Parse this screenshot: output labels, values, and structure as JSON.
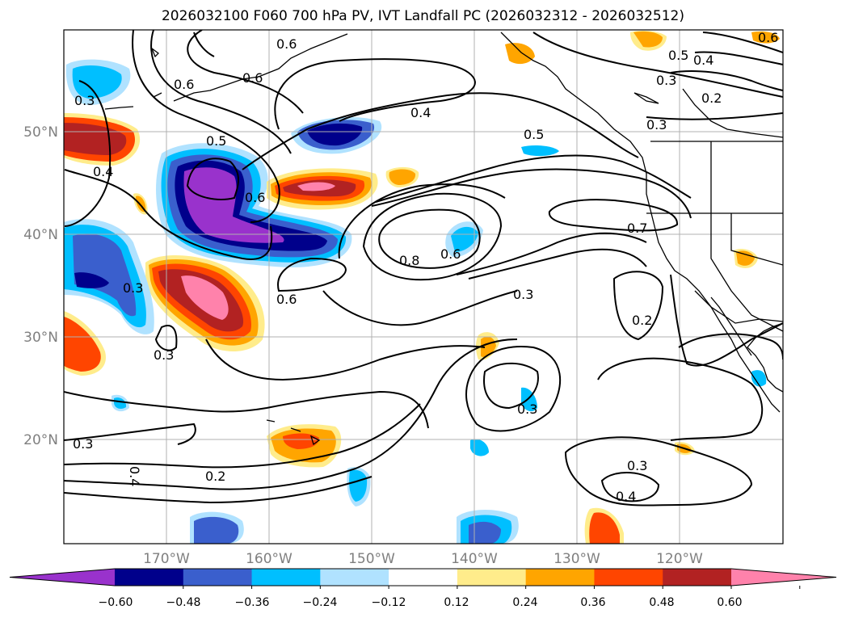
{
  "title": "2026032100 F060 700 hPa PV, IVT Landfall PC (2026032312 - 2026032512)",
  "map": {
    "lon_range": [
      -180,
      -110
    ],
    "lat_range": [
      10,
      60
    ],
    "lon_ticks": [
      "170°W",
      "160°W",
      "150°W",
      "140°W",
      "130°W",
      "120°W"
    ],
    "lat_ticks": [
      "50°N",
      "40°N",
      "30°N",
      "20°N"
    ],
    "gridlines": true
  },
  "contour_labels": [
    "0.6",
    "0.6",
    "0.6",
    "0.3",
    "0.5",
    "0.4",
    "0.6",
    "0.4",
    "0.5",
    "0.6",
    "0.5",
    "0.4",
    "0.3",
    "0.2",
    "0.3",
    "0.7",
    "0.8",
    "0.6",
    "0.3",
    "0.3",
    "0.6",
    "0.3",
    "0.2",
    "0.3",
    "0.4",
    "0.2",
    "0.3",
    "0.4"
  ],
  "colorbar": {
    "ticks": [
      "−0.60",
      "−0.48",
      "−0.36",
      "−0.24",
      "−0.12",
      "0.12",
      "0.24",
      "0.36",
      "0.48",
      "0.60"
    ],
    "colors": [
      "#9932CC",
      "#00008B",
      "#3A5FCD",
      "#00BFFF",
      "#B0E2FF",
      "#FFFFFF",
      "#FFEC8B",
      "#FFA500",
      "#FF4500",
      "#B22222",
      "#FF82AB"
    ]
  }
}
